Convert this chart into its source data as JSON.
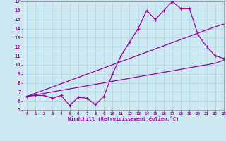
{
  "xlabel": "Windchill (Refroidissement éolien,°C)",
  "x": [
    0,
    1,
    2,
    3,
    4,
    5,
    6,
    7,
    8,
    9,
    10,
    11,
    12,
    13,
    14,
    15,
    16,
    17,
    18,
    19,
    20,
    21,
    22,
    23
  ],
  "line_zigzag": [
    6.5,
    6.6,
    6.6,
    6.3,
    6.6,
    5.5,
    6.4,
    6.3,
    5.6,
    6.5,
    9.0,
    11.0,
    12.5,
    14.0,
    16.0,
    15.0,
    16.0,
    17.0,
    16.2,
    16.2,
    13.3,
    12.0,
    11.0,
    10.7
  ],
  "line_upper": [
    6.5,
    6.85,
    7.2,
    7.55,
    7.9,
    8.25,
    8.6,
    8.95,
    9.3,
    9.65,
    10.0,
    10.35,
    10.7,
    11.05,
    11.4,
    11.75,
    12.1,
    12.45,
    12.8,
    13.15,
    13.5,
    13.85,
    14.2,
    14.5
  ],
  "line_lower": [
    6.5,
    6.67,
    6.83,
    7.0,
    7.17,
    7.33,
    7.5,
    7.67,
    7.83,
    8.0,
    8.17,
    8.33,
    8.5,
    8.67,
    8.83,
    9.0,
    9.17,
    9.33,
    9.5,
    9.67,
    9.83,
    10.0,
    10.17,
    10.5
  ],
  "color": "#990099",
  "bg_color": "#cde8f0",
  "grid_color": "#b0d8e8",
  "ylim": [
    5,
    17
  ],
  "xlim": [
    -0.5,
    23
  ]
}
